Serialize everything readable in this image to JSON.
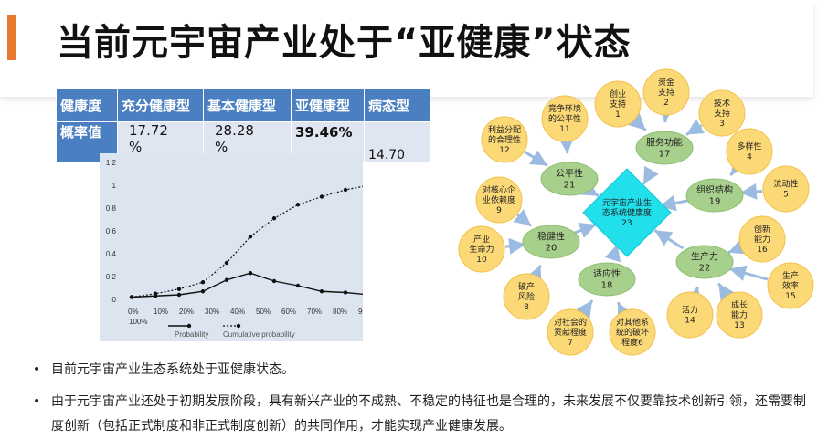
{
  "slide": {
    "title": "当前元宇宙产业处于“亚健康”状态",
    "accent_color": "#e8782f"
  },
  "table": {
    "headers": [
      "健康度",
      "充分健康型",
      "基本健康型",
      "亚健康型",
      "病态型"
    ],
    "row_label": "概率值",
    "values": [
      "17.72\n%",
      "28.28\n%",
      "39.46%",
      "14.70"
    ]
  },
  "chart_data": {
    "type": "line",
    "x": [
      "0%",
      "10%",
      "20%",
      "30%",
      "40%",
      "50%",
      "60%",
      "70%",
      "80%",
      "90%",
      "100%"
    ],
    "ylim": [
      0,
      1.2
    ],
    "yticks": [
      "0",
      "0.2",
      "0.4",
      "0.6",
      "0.8",
      "1",
      "1.2"
    ],
    "series": [
      {
        "name": "Probability",
        "values": [
          0.02,
          0.03,
          0.04,
          0.07,
          0.17,
          0.23,
          0.16,
          0.12,
          0.07,
          0.06,
          0.04
        ]
      },
      {
        "name": "Cumulative probability",
        "values": [
          0.02,
          0.05,
          0.09,
          0.15,
          0.32,
          0.55,
          0.71,
          0.83,
          0.9,
          0.96,
          1.0
        ]
      }
    ]
  },
  "diagram": {
    "center": "元宇宙产业生态系统健康度\n23",
    "green_nodes": [
      {
        "id": "g17",
        "label": "服务功能\n17"
      },
      {
        "id": "g11",
        "label": "公平性\n21"
      },
      {
        "id": "g19",
        "label": "组织结构\n19"
      },
      {
        "id": "g20",
        "label": "稳健性\n20"
      },
      {
        "id": "g18",
        "label": "适应性\n18"
      },
      {
        "id": "g22",
        "label": "生产力\n22"
      }
    ],
    "yellow_nodes": [
      {
        "id": "y1",
        "label": "创业\n支持\n1"
      },
      {
        "id": "y2",
        "label": "资金\n支持\n2"
      },
      {
        "id": "y3",
        "label": "技术\n支持\n3"
      },
      {
        "id": "y11",
        "label": "竞争环境\n的公平性\n11"
      },
      {
        "id": "y12",
        "label": "利益分配\n的合理性\n12"
      },
      {
        "id": "y4",
        "label": "多样性\n4"
      },
      {
        "id": "y5",
        "label": "流动性\n5"
      },
      {
        "id": "y9",
        "label": "对核心企\n业依赖度\n9"
      },
      {
        "id": "y10",
        "label": "产业\n生命力\n10"
      },
      {
        "id": "y16",
        "label": "创新\n能力\n16"
      },
      {
        "id": "y15",
        "label": "生产\n效率\n15"
      },
      {
        "id": "y8",
        "label": "破产\n风险\n8"
      },
      {
        "id": "y14",
        "label": "活力\n14"
      },
      {
        "id": "y13",
        "label": "成长\n能力\n13"
      },
      {
        "id": "y7",
        "label": "对社会的\n贡献程度\n7"
      },
      {
        "id": "y6",
        "label": "对其他系\n统的破坏\n程度6"
      }
    ]
  },
  "bullets": [
    "目前元宇宙产业生态系统处于亚健康状态。",
    "由于元宇宙产业还处于初期发展阶段，具有新兴产业的不成熟、不稳定的特征也是合理的，未来发展不仅要靠技术创新引领，还需要制度创新（包括正式制度和非正式制度创新）的共同作用，才能实现产业健康发展。"
  ],
  "bullet_symbol": "•"
}
